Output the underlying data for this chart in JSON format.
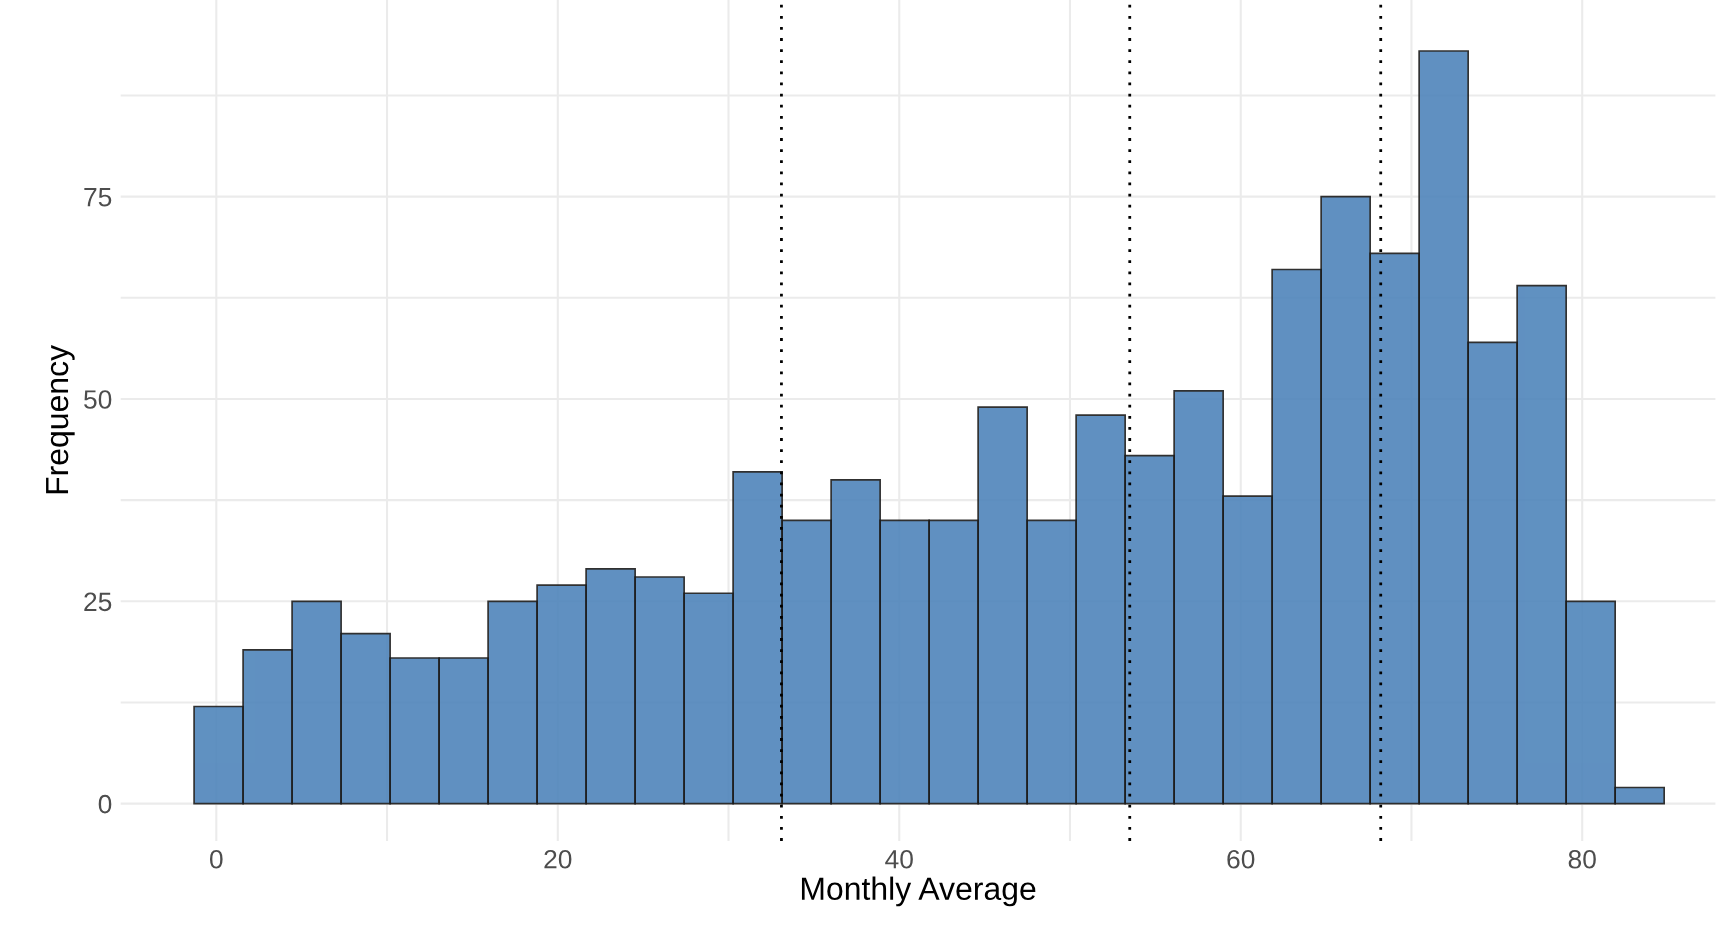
{
  "chart_data": {
    "type": "histogram",
    "xlabel": "Monthly Average",
    "ylabel": "Frequency",
    "bins": [
      -1.3,
      1.57,
      4.44,
      7.31,
      10.18,
      13.05,
      15.92,
      18.79,
      21.66,
      24.53,
      27.4,
      30.27,
      33.14,
      36.01,
      38.88,
      41.75,
      44.62,
      47.49,
      50.36,
      53.23,
      56.1,
      58.97,
      61.84,
      64.71,
      67.58,
      70.45,
      73.32,
      76.19,
      79.06,
      81.93,
      84.8
    ],
    "values": [
      12,
      19,
      25,
      21,
      18,
      18,
      25,
      27,
      29,
      28,
      26,
      41,
      35,
      40,
      35,
      35,
      49,
      35,
      48,
      43,
      51,
      38,
      66,
      75,
      68,
      93,
      57,
      64,
      25,
      2
    ],
    "color": "#4f85bb",
    "xlim": [
      -5.6,
      87.8
    ],
    "ylim": [
      -4.6,
      99.3
    ],
    "xticks": [
      0,
      {
        "value": 10,
        "label": null
      },
      20,
      {
        "value": 30,
        "label": null
      },
      40,
      {
        "value": 50,
        "label": null
      },
      60,
      {
        "value": 70,
        "label": null
      },
      80
    ],
    "yticks": [
      0,
      {
        "value": 12.5,
        "label": null
      },
      25,
      {
        "value": 37.5,
        "label": null
      },
      50,
      {
        "value": 62.5,
        "label": null
      },
      75,
      {
        "value": 87.5,
        "label": null
      }
    ],
    "grid": true,
    "ref_lines": [
      {
        "axis": "x",
        "value": 33.1,
        "line_style": "dotted",
        "color": "#000000"
      },
      {
        "axis": "x",
        "value": 53.5,
        "line_style": "dotted",
        "color": "#000000"
      },
      {
        "axis": "x",
        "value": 68.2,
        "line_style": "dotted",
        "color": "#000000"
      }
    ]
  }
}
